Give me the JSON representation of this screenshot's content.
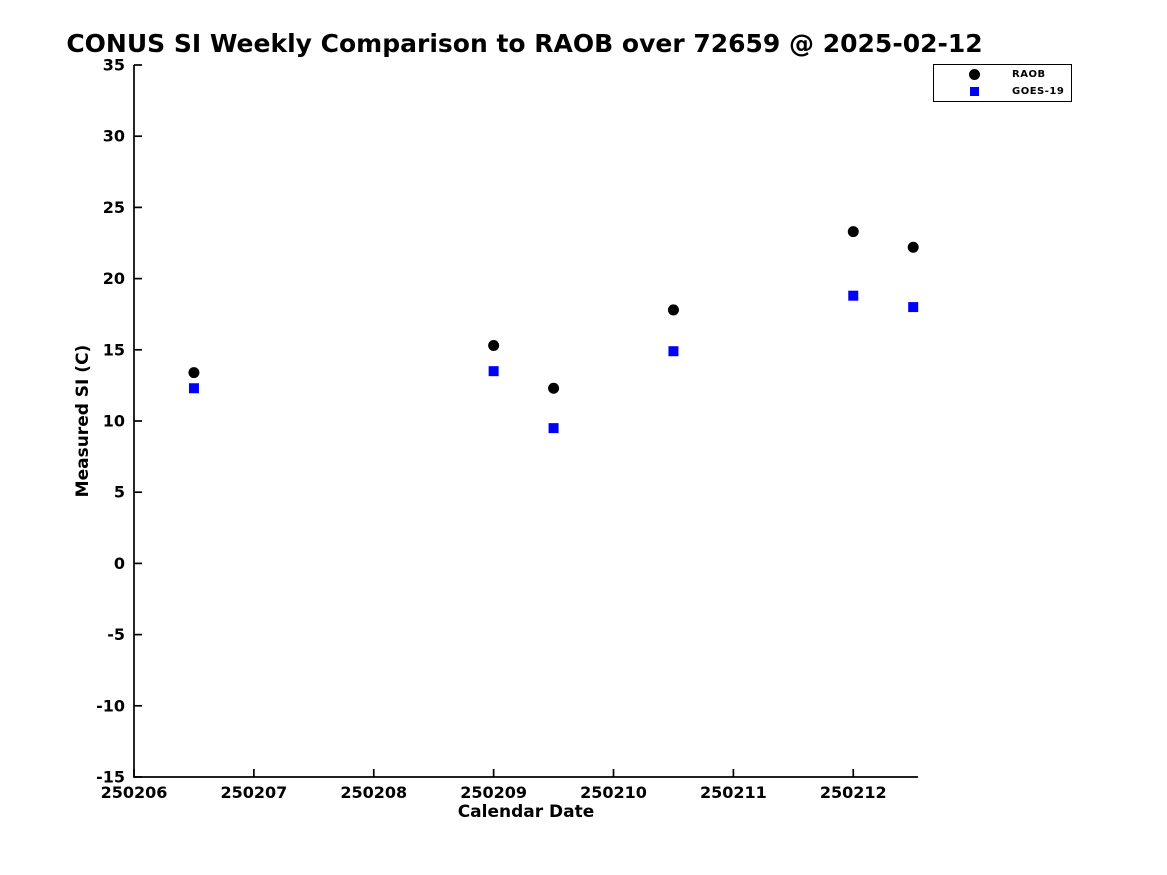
{
  "page": {
    "background": "#ffffff"
  },
  "chart_data": {
    "type": "scatter",
    "title": "CONUS SI Weekly Comparison to RAOB over 72659 @ 2025-02-12",
    "xlabel": "Calendar Date",
    "ylabel": "Measured SI (C)",
    "xlim": [
      250206,
      250212.54
    ],
    "ylim": [
      -15,
      35
    ],
    "x_ticks": [
      250206,
      250207,
      250208,
      250209,
      250210,
      250211,
      250212
    ],
    "y_ticks": [
      35,
      30,
      25,
      20,
      15,
      10,
      5,
      0,
      -5,
      -10,
      -15
    ],
    "x": [
      250206.5,
      250209.0,
      250209.5,
      250210.5,
      250212.0,
      250212.5
    ],
    "series": [
      {
        "name": "RAOB",
        "marker": "circle",
        "color": "#000000",
        "values": [
          13.4,
          15.3,
          12.3,
          17.8,
          23.3,
          22.2
        ]
      },
      {
        "name": "GOES-19",
        "marker": "square",
        "color": "#0000ff",
        "values": [
          12.3,
          13.5,
          9.5,
          14.9,
          18.8,
          18.0
        ]
      }
    ],
    "legend": {
      "position": "top-right",
      "entries": [
        "RAOB",
        "GOES-19"
      ]
    },
    "grid": false,
    "axis_color": "#000000"
  }
}
